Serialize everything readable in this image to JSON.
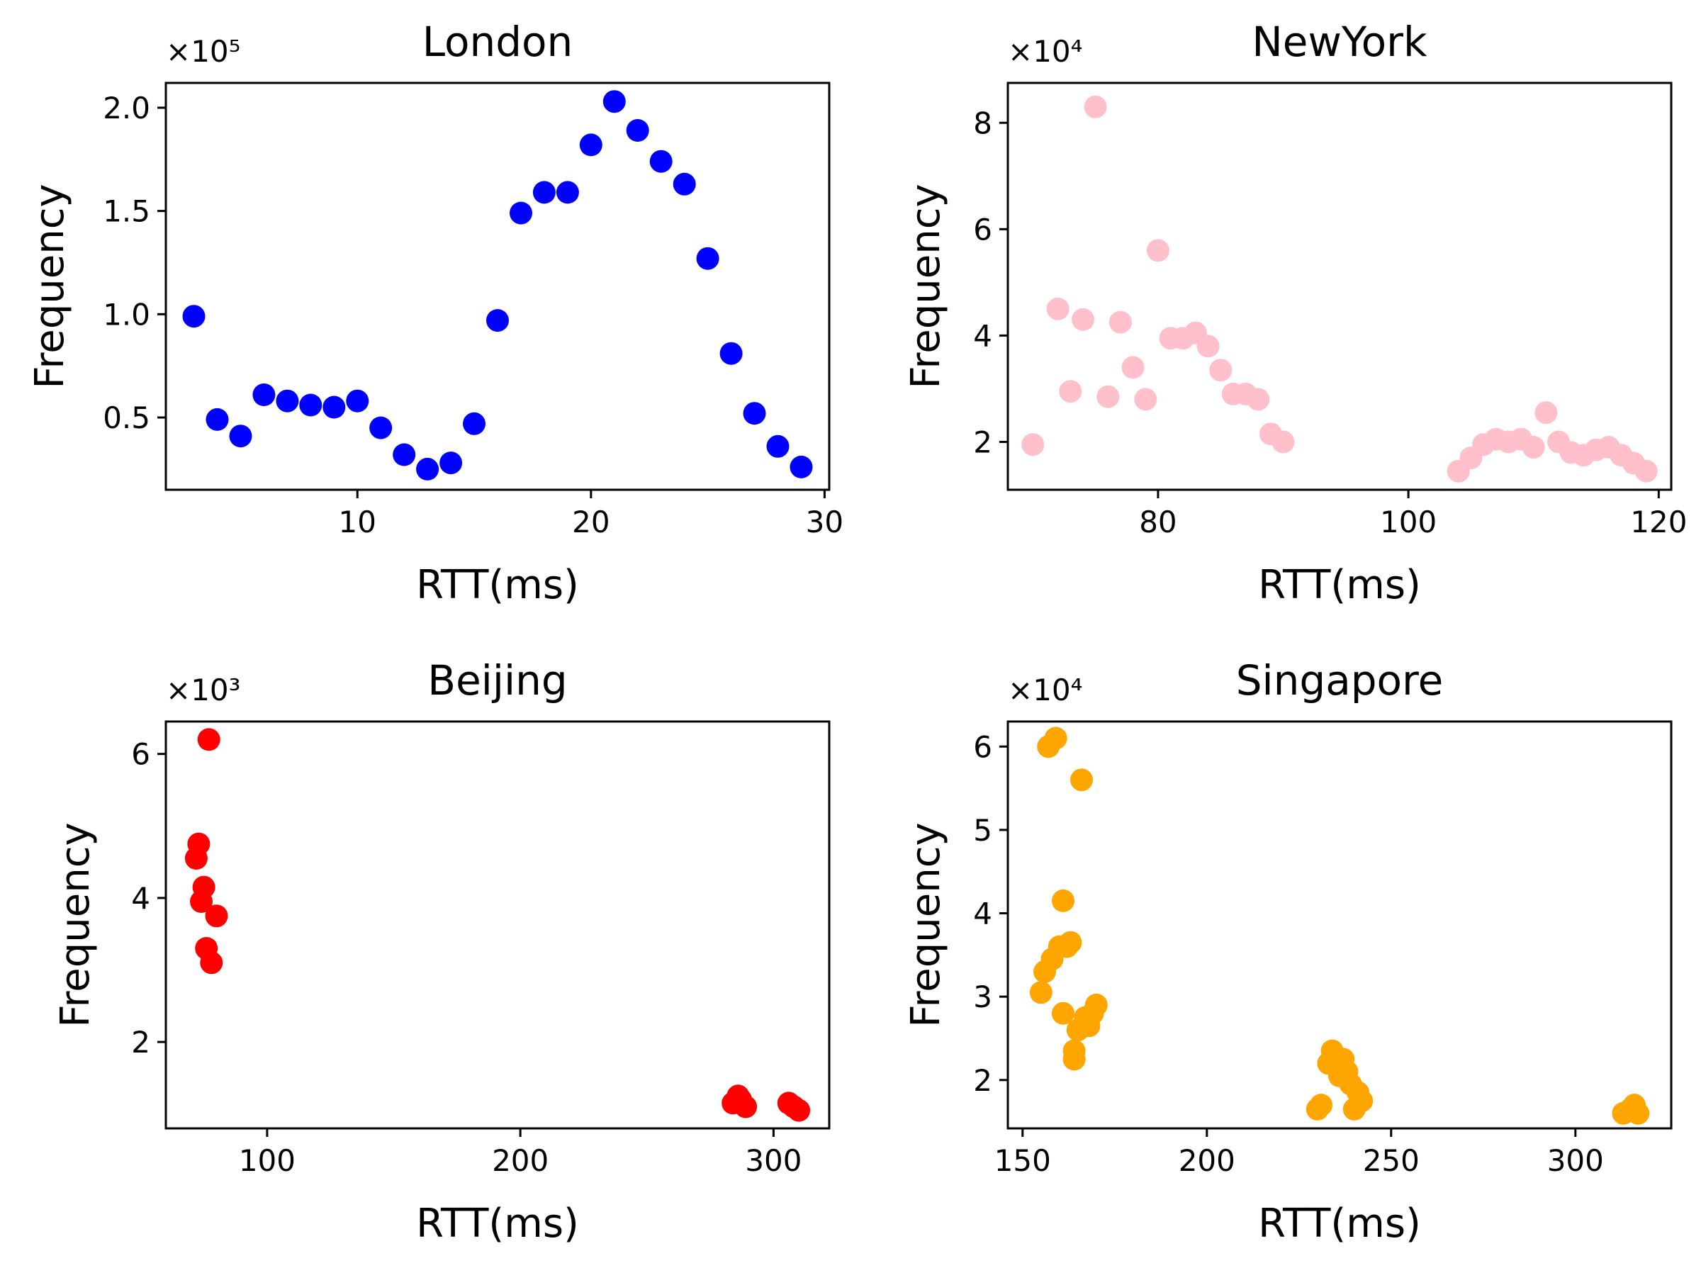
{
  "chart_data": [
    {
      "type": "scatter",
      "title": "London",
      "xlabel": "RTT(ms)",
      "ylabel": "Frequency",
      "y_multiplier": "×10⁵",
      "color": "#0000ff",
      "xlim": [
        1.8,
        30.2
      ],
      "ylim": [
        0.15,
        2.12
      ],
      "xticks": [
        10,
        20,
        30
      ],
      "xtick_labels": [
        "10",
        "20",
        "30"
      ],
      "yticks": [
        0.5,
        1.0,
        1.5,
        2.0
      ],
      "ytick_labels": [
        "0.5",
        "1.0",
        "1.5",
        "2.0"
      ],
      "x": [
        3,
        4,
        5,
        6,
        7,
        8,
        9,
        10,
        11,
        12,
        13,
        14,
        15,
        16,
        17,
        18,
        19,
        20,
        21,
        22,
        23,
        24,
        25,
        26,
        27,
        28,
        29
      ],
      "y": [
        0.99,
        0.49,
        0.41,
        0.61,
        0.58,
        0.56,
        0.55,
        0.58,
        0.45,
        0.32,
        0.25,
        0.28,
        0.47,
        0.97,
        1.49,
        1.59,
        1.59,
        1.82,
        2.03,
        1.89,
        1.74,
        1.63,
        1.27,
        0.81,
        0.52,
        0.36,
        0.26
      ]
    },
    {
      "type": "scatter",
      "title": "NewYork",
      "xlabel": "RTT(ms)",
      "ylabel": "Frequency",
      "y_multiplier": "×10⁴",
      "color": "#ffc0cb",
      "xlim": [
        68,
        121
      ],
      "ylim": [
        1.1,
        8.75
      ],
      "xticks": [
        80,
        100,
        120
      ],
      "xtick_labels": [
        "80",
        "100",
        "120"
      ],
      "yticks": [
        2,
        4,
        6,
        8
      ],
      "ytick_labels": [
        "2",
        "4",
        "6",
        "8"
      ],
      "x": [
        70,
        72,
        73,
        74,
        75,
        76,
        77,
        78,
        79,
        80,
        81,
        82,
        83,
        84,
        85,
        86,
        87,
        88,
        89,
        90,
        104,
        105,
        106,
        107,
        108,
        109,
        110,
        111,
        112,
        113,
        114,
        115,
        116,
        117,
        118,
        119
      ],
      "y": [
        1.95,
        4.5,
        2.95,
        4.3,
        8.3,
        2.85,
        4.25,
        3.4,
        2.8,
        5.6,
        3.95,
        3.95,
        4.05,
        3.8,
        3.35,
        2.9,
        2.9,
        2.8,
        2.15,
        2.0,
        1.45,
        1.7,
        1.95,
        2.05,
        2.0,
        2.05,
        1.9,
        2.55,
        2.0,
        1.8,
        1.75,
        1.85,
        1.9,
        1.75,
        1.6,
        1.45
      ]
    },
    {
      "type": "scatter",
      "title": "Beijing",
      "xlabel": "RTT(ms)",
      "ylabel": "Frequency",
      "y_multiplier": "×10³",
      "color": "#ff0000",
      "xlim": [
        60,
        322
      ],
      "ylim": [
        0.8,
        6.45
      ],
      "xticks": [
        100,
        200,
        300
      ],
      "xtick_labels": [
        "100",
        "200",
        "300"
      ],
      "yticks": [
        2,
        4,
        6
      ],
      "ytick_labels": [
        "2",
        "4",
        "6"
      ],
      "x": [
        72,
        73,
        74,
        75,
        76,
        77,
        78,
        80,
        284,
        286,
        287,
        289,
        306,
        308,
        310
      ],
      "y": [
        4.55,
        4.75,
        3.95,
        4.15,
        3.3,
        6.2,
        3.1,
        3.75,
        1.15,
        1.25,
        1.2,
        1.1,
        1.15,
        1.1,
        1.05
      ]
    },
    {
      "type": "scatter",
      "title": "Singapore",
      "xlabel": "RTT(ms)",
      "ylabel": "Frequency",
      "y_multiplier": "×10⁴",
      "color": "#ffa500",
      "xlim": [
        146,
        326
      ],
      "ylim": [
        1.42,
        6.3
      ],
      "xticks": [
        150,
        200,
        250,
        300
      ],
      "xtick_labels": [
        "150",
        "200",
        "250",
        "300"
      ],
      "yticks": [
        2,
        3,
        4,
        5,
        6
      ],
      "ytick_labels": [
        "2",
        "3",
        "4",
        "5",
        "6"
      ],
      "x": [
        155,
        156,
        157,
        158,
        159,
        160,
        161,
        161,
        162,
        163,
        164,
        164,
        165,
        166,
        167,
        168,
        169,
        170,
        230,
        231,
        233,
        234,
        235,
        236,
        237,
        238,
        239,
        240,
        241,
        242,
        313,
        315,
        316,
        317
      ],
      "y": [
        3.05,
        3.3,
        6.0,
        3.45,
        6.1,
        3.6,
        4.15,
        2.8,
        3.6,
        3.65,
        2.25,
        2.35,
        2.6,
        5.6,
        2.75,
        2.65,
        2.8,
        2.9,
        1.65,
        1.7,
        2.2,
        2.35,
        2.2,
        2.05,
        2.25,
        2.1,
        1.95,
        1.65,
        1.85,
        1.75,
        1.6,
        1.65,
        1.7,
        1.6
      ]
    }
  ]
}
